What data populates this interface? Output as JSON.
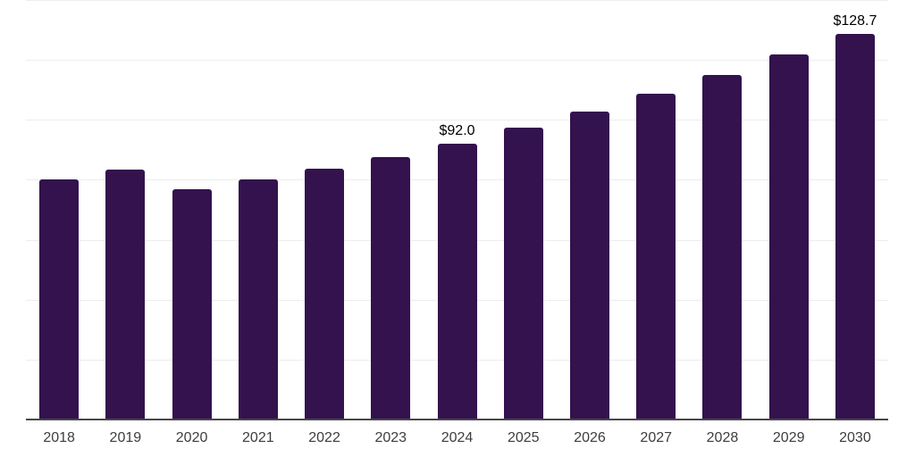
{
  "chart_data": {
    "type": "bar",
    "title": "",
    "xlabel": "",
    "ylabel": "",
    "categories": [
      "2018",
      "2019",
      "2020",
      "2021",
      "2022",
      "2023",
      "2024",
      "2025",
      "2026",
      "2027",
      "2028",
      "2029",
      "2030"
    ],
    "values": [
      80.0,
      83.5,
      77.0,
      80.0,
      83.8,
      87.6,
      92.0,
      97.3,
      102.9,
      108.8,
      115.1,
      121.7,
      128.7
    ],
    "value_labels": [
      "",
      "",
      "",
      "",
      "",
      "",
      "$92.0",
      "",
      "",
      "",
      "",
      "",
      "$128.7"
    ],
    "ylim": [
      0,
      140
    ],
    "gridline_interval": 20,
    "grid": "horizontal",
    "y_axis_tick_labels": "none",
    "legend_position": "none"
  },
  "colors": {
    "background": "#ffffff",
    "bar": "#33124e",
    "gridline": "#ededed",
    "axis_line": "#484848",
    "value_label": "#000000",
    "year_label": "#3d3d3d"
  }
}
